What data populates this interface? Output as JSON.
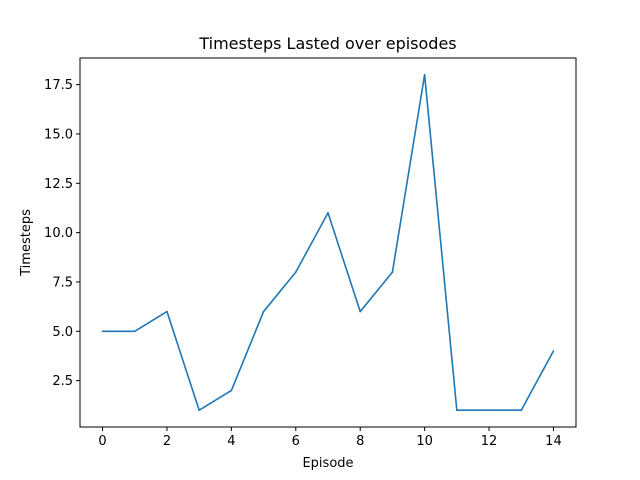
{
  "chart_data": {
    "type": "line",
    "title": "Timesteps Lasted over episodes",
    "xlabel": "Episode",
    "ylabel": "Timesteps",
    "xlim": [
      -0.7,
      14.7
    ],
    "ylim": [
      0.15,
      18.85
    ],
    "x_ticks": [
      0,
      2,
      4,
      6,
      8,
      10,
      12,
      14
    ],
    "x_tick_labels": [
      "0",
      "2",
      "4",
      "6",
      "8",
      "10",
      "12",
      "14"
    ],
    "y_ticks": [
      2.5,
      5.0,
      7.5,
      10.0,
      12.5,
      15.0,
      17.5
    ],
    "y_tick_labels": [
      "2.5",
      "5.0",
      "7.5",
      "10.0",
      "12.5",
      "15.0",
      "17.5"
    ],
    "grid": false,
    "series": [
      {
        "color": "#1f77b4",
        "x": [
          0,
          1,
          2,
          3,
          4,
          5,
          6,
          7,
          8,
          9,
          10,
          11,
          12,
          13,
          14
        ],
        "y": [
          5,
          5,
          6,
          1,
          2,
          6,
          8,
          11,
          6,
          8,
          18,
          1,
          1,
          1,
          4
        ]
      }
    ]
  }
}
